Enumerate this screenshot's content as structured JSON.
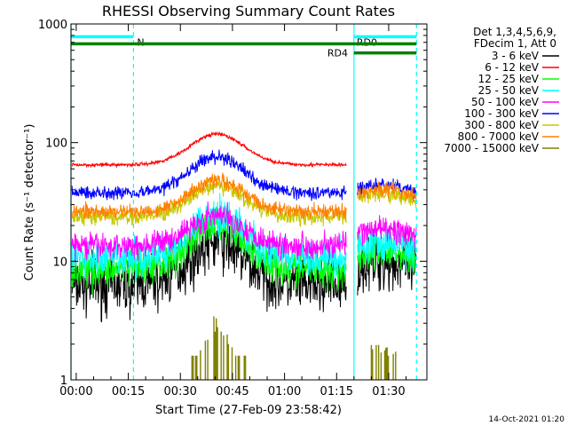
{
  "chart_data": {
    "type": "line",
    "title": "RHESSI Observing Summary Count Rates",
    "xlabel": "Start Time (27-Feb-09 23:58:42)",
    "ylabel": "Count Rate (s⁻¹ detector⁻¹)",
    "yscale": "log",
    "ylim": [
      1,
      1000
    ],
    "xlim_minutes": [
      -1.5,
      101
    ],
    "x_tick_labels": [
      "00:00",
      "00:15",
      "00:30",
      "00:45",
      "01:00",
      "01:15",
      "01:30"
    ],
    "x_tick_minutes": [
      0,
      15,
      30,
      45,
      60,
      75,
      90
    ],
    "y_tick_labels": [
      "1",
      "10",
      "100",
      "1000"
    ],
    "y_tick_values": [
      1,
      10,
      100,
      1000
    ],
    "legend_position": "top-right",
    "legend_header": [
      "Det 1,3,4,5,6,9,",
      "FDecim 1, Att 0"
    ],
    "timestamp": "14-Oct-2021 01:20",
    "series": [
      {
        "name": "3 - 6 keV",
        "color": "#000000",
        "base": 6.3,
        "peak": 14.5,
        "post": 9.0,
        "noise": 0.11,
        "gap": false
      },
      {
        "name": "6 - 12 keV",
        "color": "#ff0000",
        "base": 65,
        "peak": 118,
        "post": 0,
        "noise": 0,
        "gap": true
      },
      {
        "name": "12 - 25 keV",
        "color": "#00ff00",
        "base": 8.5,
        "peak": 20.5,
        "post": 11.0,
        "noise": 0.07,
        "gap": false
      },
      {
        "name": "25 - 50 keV",
        "color": "#00ffff",
        "base": 10.5,
        "peak": 25,
        "post": 13.0,
        "noise": 0.07,
        "gap": false
      },
      {
        "name": "50 - 100 keV",
        "color": "#ff00ff",
        "base": 13.5,
        "peak": 24,
        "post": 17.0,
        "noise": 0.05,
        "gap": false
      },
      {
        "name": "100 - 300 keV",
        "color": "#0000ff",
        "base": 38,
        "peak": 76,
        "post": 40,
        "noise": 0.025,
        "gap": false
      },
      {
        "name": "300 - 800 keV",
        "color": "#c8c800",
        "base": 23.5,
        "peak": 43,
        "post": 34,
        "noise": 0.03,
        "gap": false
      },
      {
        "name": "800 - 7000 keV",
        "color": "#ff8000",
        "base": 26,
        "peak": 48,
        "post": 37,
        "noise": 0.03,
        "gap": false
      },
      {
        "name": "7000 - 15000 keV",
        "color": "#808000",
        "base": 0,
        "peak": 3.3,
        "post": 2.0,
        "noise": 0,
        "gap": false
      }
    ],
    "flag_bars": [
      {
        "label": "N",
        "color": "#00ffff",
        "start": -1.5,
        "end": 16.5,
        "value": 780
      },
      {
        "label": "RD0",
        "color": "#00ffff",
        "start": 80,
        "end": 98,
        "value": 780
      },
      {
        "label": "",
        "color": "#008000",
        "start": -1.5,
        "end": 98,
        "value": 680
      },
      {
        "label": "RD4",
        "color": "#008000",
        "start": 80,
        "end": 98,
        "value": 570
      }
    ],
    "vertical_markers": [
      {
        "minute": -1.5,
        "color": "#00ffff",
        "style": "solid"
      },
      {
        "minute": 16.5,
        "color": "#00ffff",
        "style": "dashed"
      },
      {
        "minute": 80,
        "color": "#00ffff",
        "style": "solid"
      },
      {
        "minute": 98,
        "color": "#00ffff",
        "style": "dashed"
      }
    ]
  }
}
